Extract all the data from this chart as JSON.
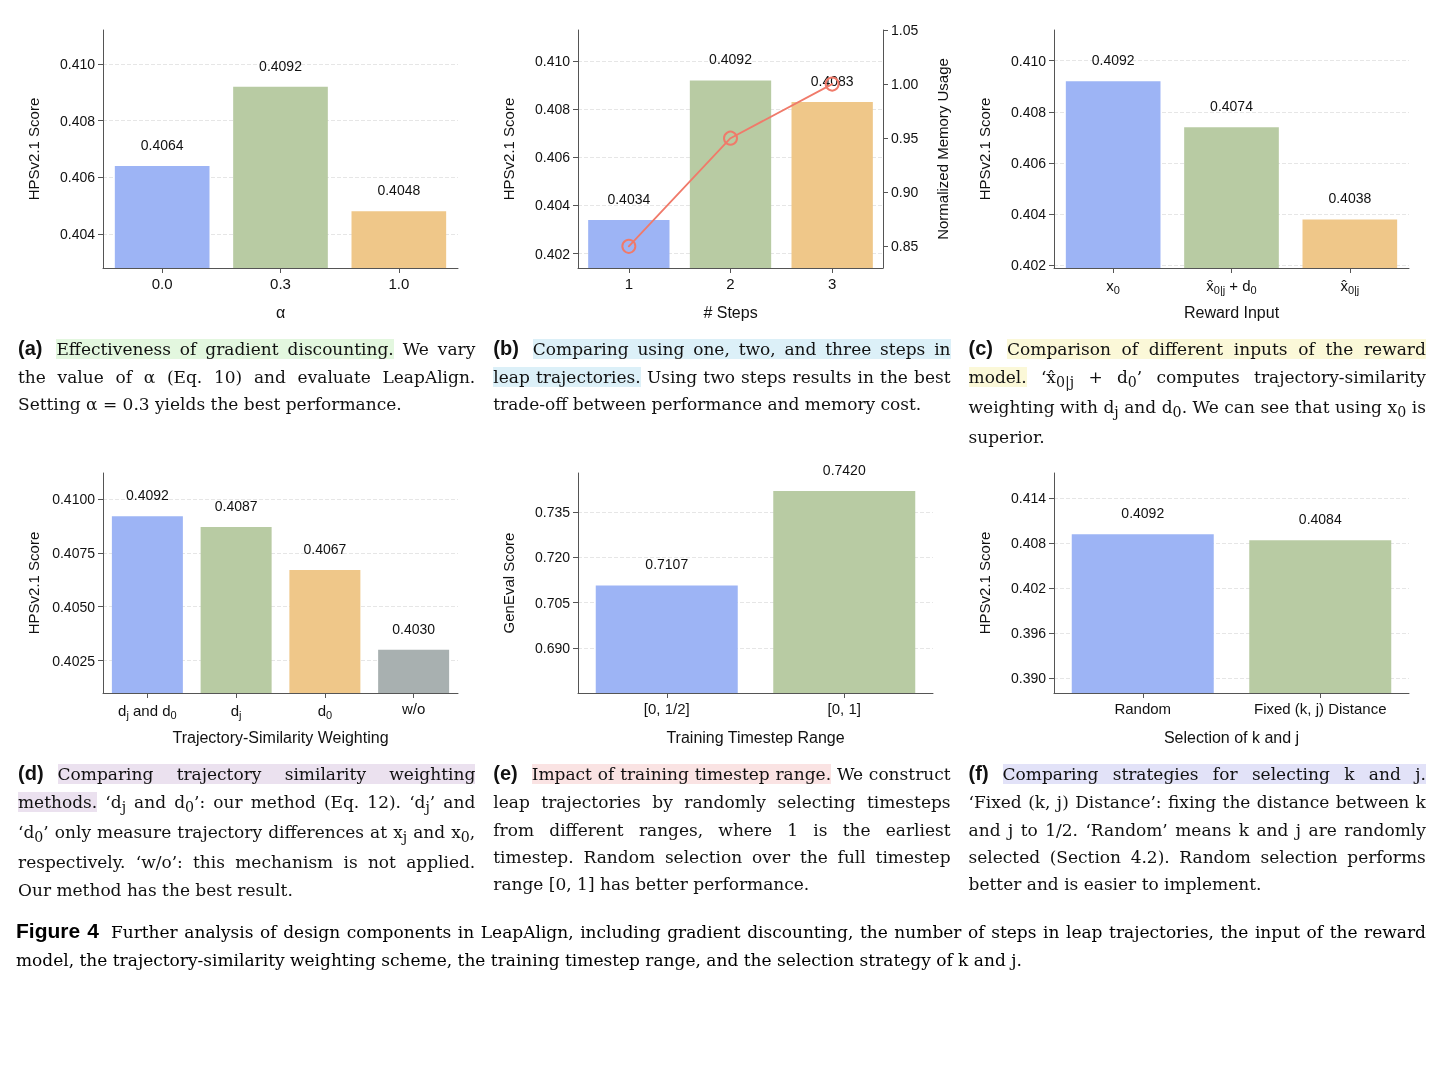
{
  "chart_data": [
    {
      "type": "bar",
      "subtitle": "(a)",
      "title": "Effectiveness of gradient discounting.",
      "annotations": [
        "We vary the value of α (Eq. 10) and evaluate LeapAlign. Setting α = 0.3 yields the best performance."
      ],
      "xlabel": "α",
      "ylabel": "HPSv2.1 Score",
      "categories": [
        "0.0",
        "0.3",
        "1.0"
      ],
      "series": [
        {
          "colors": [
            "#9db4f5",
            "#b8cba3",
            "#efc789"
          ],
          "values": [
            0.4064,
            0.4092,
            0.4048
          ]
        }
      ],
      "ylim": [
        0.4028,
        0.4112
      ],
      "yticks": [
        {
          "value": 0.404,
          "label": "0.404"
        },
        {
          "value": 0.406,
          "label": "0.406"
        },
        {
          "value": 0.408,
          "label": "0.408"
        },
        {
          "value": 0.41,
          "label": "0.410"
        }
      ],
      "grid": "y",
      "data_labels": true
    },
    {
      "type": "bar",
      "subtitle": "(b)",
      "title": "Comparing using one, two, and three steps in leap trajectories.",
      "annotations": [
        "Using two steps results in the best trade-off between performance and memory cost."
      ],
      "xlabel": "# Steps",
      "ylabel": "HPSv2.1 Score",
      "y2label": "Normalized Memory Usage",
      "categories": [
        "1",
        "2",
        "3"
      ],
      "series": [
        {
          "colors": [
            "#9db4f5",
            "#b8cba3",
            "#efc789"
          ],
          "values": [
            0.4034,
            0.4092,
            0.4083
          ],
          "value_labels": [
            "0.4034",
            "0.4092",
            "0.4083"
          ]
        },
        {
          "type": "line",
          "axis": "y2",
          "color": "#f07a6a",
          "marker": "circle",
          "values": [
            0.85,
            0.95,
            1.0
          ]
        }
      ],
      "ylim": [
        0.4014,
        0.4113
      ],
      "yticks": [
        {
          "value": 0.402,
          "label": "0.402"
        },
        {
          "value": 0.404,
          "label": "0.404"
        },
        {
          "value": 0.406,
          "label": "0.406"
        },
        {
          "value": 0.408,
          "label": "0.408"
        },
        {
          "value": 0.41,
          "label": "0.410"
        }
      ],
      "y2lim": [
        0.83,
        1.05
      ],
      "y2ticks": [
        {
          "value": 0.85,
          "label": "0.85"
        },
        {
          "value": 0.9,
          "label": "0.90"
        },
        {
          "value": 0.95,
          "label": "0.95"
        },
        {
          "value": 1.0,
          "label": "1.00"
        },
        {
          "value": 1.05,
          "label": "1.05"
        }
      ],
      "grid": "y"
    },
    {
      "type": "bar",
      "subtitle": "(c)",
      "title": "Comparison of different inputs of the reward model.",
      "annotations": [
        "‘x̂$_{0|j}$ + d$_{0}$’ computes trajectory-similarity weighting with d$_{j}$ and d$_{0}$. We can see that using x$_{0}$ is superior."
      ],
      "xlabel": "Reward Input",
      "ylabel": "HPSv2.1 Score",
      "categories": [
        "x$_{0}$",
        "x̂$_{0|j}$ + d$_{0}$",
        "x̂$_{0|j}$"
      ],
      "series": [
        {
          "colors": [
            "#9db4f5",
            "#b8cba3",
            "#efc789"
          ],
          "values": [
            0.4092,
            0.4074,
            0.4038
          ]
        }
      ],
      "ylim": [
        0.4019,
        0.4112
      ],
      "yticks": [
        {
          "value": 0.402,
          "label": "0.402"
        },
        {
          "value": 0.404,
          "label": "0.404"
        },
        {
          "value": 0.406,
          "label": "0.406"
        },
        {
          "value": 0.408,
          "label": "0.408"
        },
        {
          "value": 0.41,
          "label": "0.410"
        }
      ],
      "grid": "y",
      "data_labels": true
    },
    {
      "type": "bar",
      "subtitle": "(d)",
      "title": "Comparing trajectory similarity weighting methods.",
      "annotations": [
        "‘d$_{j}$ and d$_{0}$’: our method (Eq. 12). ‘d$_{j}$’ and ‘d$_{0}$’ only measure trajectory differences at x$_{j}$ and x$_{0}$, respectively. ‘w/o’: this mechanism is not applied. Our method has the best result."
      ],
      "xlabel": "Trajectory-Similarity Weighting",
      "ylabel": "HPSv2.1 Score",
      "categories": [
        "d$_{j}$ and d$_{0}$",
        "d$_{j}$",
        "d$_{0}$",
        "w/o"
      ],
      "series": [
        {
          "colors": [
            "#9db4f5",
            "#b8cba3",
            "#efc789",
            "#a8b0b0"
          ],
          "values": [
            0.4092,
            0.4087,
            0.4067,
            0.403
          ],
          "value_labels": [
            "0.4092",
            "0.4087",
            "0.4067",
            "0.4030"
          ]
        }
      ],
      "ylim": [
        0.401,
        0.4112
      ],
      "yticks": [
        {
          "value": 0.4025,
          "label": "0.4025"
        },
        {
          "value": 0.405,
          "label": "0.4050"
        },
        {
          "value": 0.4075,
          "label": "0.4075"
        },
        {
          "value": 0.41,
          "label": "0.4100"
        }
      ],
      "grid": "y"
    },
    {
      "type": "bar",
      "subtitle": "(e)",
      "title": "Impact of training timestep range.",
      "annotations": [
        "We construct leap trajectories by randomly selecting timesteps from different ranges, where 1 is the earliest timestep. Random selection over the full timestep range [0, 1] has better performance."
      ],
      "xlabel": "Training Timestep Range",
      "ylabel": "GenEval Score",
      "categories": [
        "[0, 1/2]",
        "[0, 1]"
      ],
      "series": [
        {
          "colors": [
            "#9db4f5",
            "#b8cba3"
          ],
          "values": [
            0.7107,
            0.742
          ],
          "value_labels": [
            "0.7107",
            "0.7420"
          ]
        }
      ],
      "ylim": [
        0.675,
        0.748
      ],
      "yticks": [
        {
          "value": 0.69,
          "label": "0.690"
        },
        {
          "value": 0.705,
          "label": "0.705"
        },
        {
          "value": 0.72,
          "label": "0.720"
        },
        {
          "value": 0.735,
          "label": "0.735"
        }
      ],
      "grid": "y"
    },
    {
      "type": "bar",
      "subtitle": "(f)",
      "title": "Comparing strategies for selecting k and j.",
      "annotations": [
        "‘Fixed (k, j) Distance’: fixing the distance between k and j to 1/2. ‘Random’ means k and j are randomly selected (Section 4.2). Random selection performs better and is easier to implement."
      ],
      "xlabel": "Selection of k and j",
      "ylabel": "HPSv2.1 Score",
      "categories": [
        "Random",
        "Fixed (k, j) Distance"
      ],
      "series": [
        {
          "colors": [
            "#9db4f5",
            "#b8cba3"
          ],
          "values": [
            0.4092,
            0.4084
          ]
        }
      ],
      "ylim": [
        0.388,
        0.4174
      ],
      "yticks": [
        {
          "value": 0.39,
          "label": "0.390"
        },
        {
          "value": 0.396,
          "label": "0.396"
        },
        {
          "value": 0.402,
          "label": "0.402"
        },
        {
          "value": 0.408,
          "label": "0.408"
        },
        {
          "value": 0.414,
          "label": "0.414"
        }
      ],
      "grid": "y",
      "data_labels": true
    },
    {
      "type": "other",
      "title": "Figure 4",
      "annotations": [
        "Further analysis of design components in LeapAlign, including gradient discounting, the number of steps in leap trajectories, the input of the reward model, the trajectory-similarity weighting scheme, the training timestep range, and the selection strategy of k and j."
      ]
    }
  ]
}
